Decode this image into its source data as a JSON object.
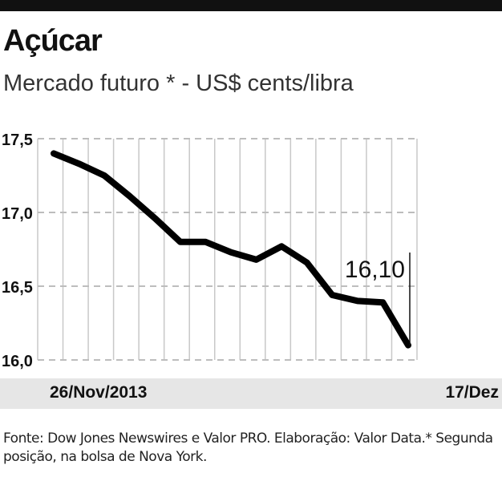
{
  "header": {
    "title": "Açúcar",
    "subtitle": "Mercado futuro * - US$ cents/libra"
  },
  "chart_data": {
    "type": "line",
    "title": "Açúcar",
    "ylabel": "US$ cents/libra",
    "ylim": [
      16.0,
      17.5
    ],
    "yticks": [
      "17,5",
      "17,0",
      "16,5",
      "16,0"
    ],
    "ytick_values": [
      17.5,
      17.0,
      16.5,
      16.0
    ],
    "x_start_label": "26/Nov/2013",
    "x_end_label": "17/Dez",
    "grid": true,
    "series": [
      {
        "name": "Açúcar",
        "values": [
          17.4,
          17.33,
          17.25,
          17.11,
          16.96,
          16.8,
          16.8,
          16.73,
          16.68,
          16.77,
          16.66,
          16.44,
          16.4,
          16.39,
          16.1
        ]
      }
    ],
    "annotation": "16,10",
    "color": "#000000"
  },
  "footer": {
    "source": "Fonte: Dow Jones Newswires e Valor PRO. Elaboração: Valor Data.* Segunda posição, na bolsa de Nova York."
  }
}
